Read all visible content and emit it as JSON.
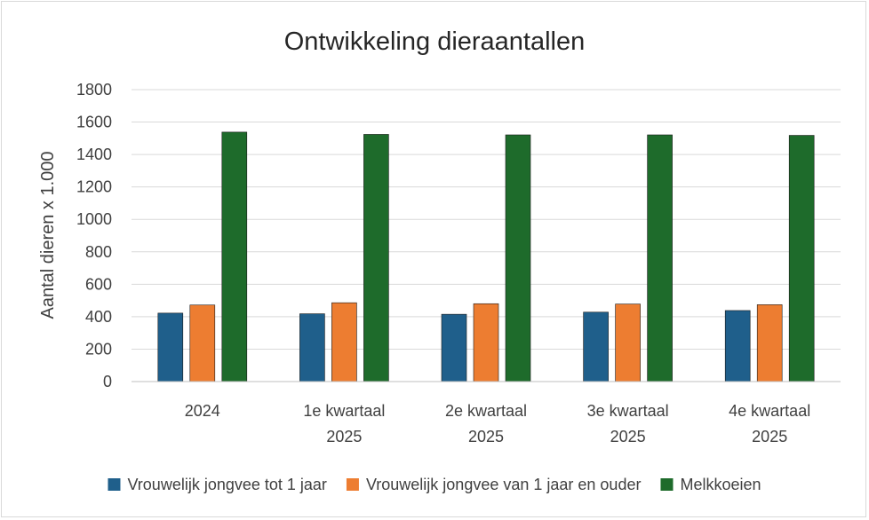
{
  "chart_data": {
    "type": "bar",
    "title": "Ontwikkeling dieraantallen",
    "ylabel": "Aantal dieren x 1.000",
    "xlabel": "",
    "ylim": [
      0,
      1800
    ],
    "yticks": [
      0,
      200,
      400,
      600,
      800,
      1000,
      1200,
      1400,
      1600,
      1800
    ],
    "grid": true,
    "legend_position": "bottom",
    "categories": [
      [
        "2024"
      ],
      [
        "1e kwartaal",
        "2025"
      ],
      [
        "2e kwartaal",
        "2025"
      ],
      [
        "3e kwartaal",
        "2025"
      ],
      [
        "4e kwartaal",
        "2025"
      ]
    ],
    "series": [
      {
        "name": "Vrouwelijk jongvee tot 1 jaar",
        "color": "#1f5f8b",
        "values": [
          422,
          418,
          415,
          428,
          438
        ]
      },
      {
        "name": "Vrouwelijk jongvee van 1 jaar en ouder",
        "color": "#ed7d31",
        "values": [
          472,
          486,
          480,
          478,
          474
        ]
      },
      {
        "name": "Melkkoeien",
        "color": "#1e6b2b",
        "values": [
          1538,
          1524,
          1521,
          1521,
          1518
        ]
      }
    ]
  }
}
